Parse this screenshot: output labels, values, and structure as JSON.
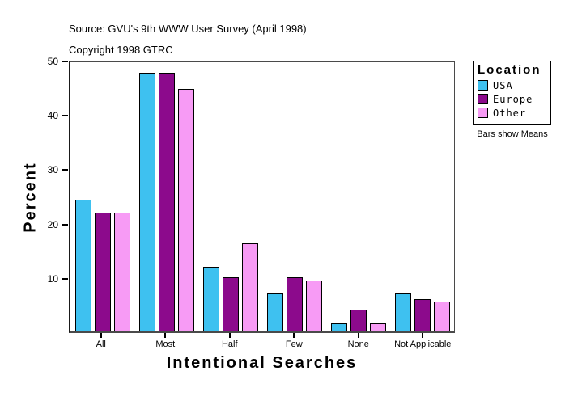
{
  "header": {
    "source": "Source: GVU's 9th WWW User Survey (April 1998)",
    "copyright": "Copyright 1998 GTRC"
  },
  "chart_data": {
    "type": "bar",
    "title": "",
    "xlabel": "Intentional Searches",
    "ylabel": "Percent",
    "ylim": [
      0,
      50
    ],
    "yticks": [
      10,
      20,
      30,
      40,
      50
    ],
    "grid": false,
    "categories": [
      "All",
      "Most",
      "Half",
      "Few",
      "None",
      "Not Applicable"
    ],
    "series": [
      {
        "name": "USA",
        "color": "#3EC1F0",
        "values": [
          24.5,
          48,
          12,
          7,
          1.5,
          7
        ]
      },
      {
        "name": "Europe",
        "color": "#8C0A8C",
        "values": [
          22,
          48,
          10,
          10,
          4,
          6
        ]
      },
      {
        "name": "Other",
        "color": "#F79BF5",
        "values": [
          22,
          45,
          16.3,
          9.5,
          1.5,
          5.5
        ]
      }
    ],
    "legend_title": "Location",
    "legend_position": "right",
    "note": "Bars show Means"
  }
}
